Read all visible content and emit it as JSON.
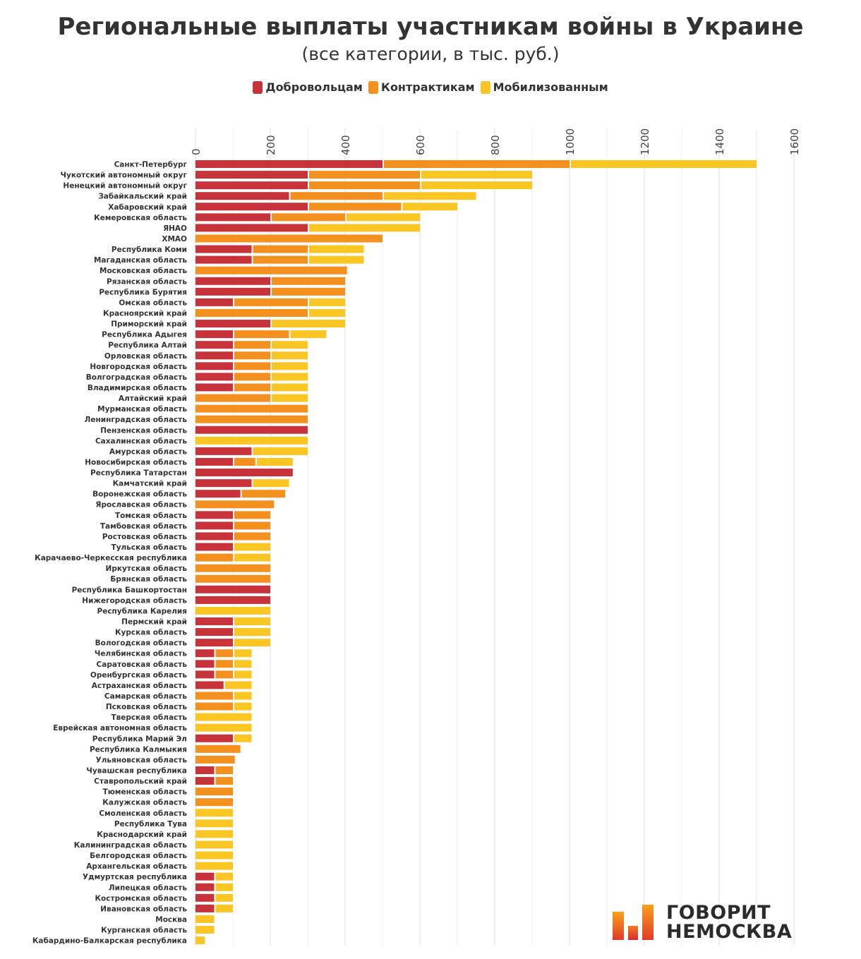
{
  "chart_data": {
    "type": "bar",
    "orientation": "horizontal",
    "stacked": true,
    "title": "Региональные выплаты участникам войны в Украине",
    "subtitle": "(все категории, в тыс. руб.)",
    "xlim": [
      0,
      1600
    ],
    "xticks": [
      "0",
      "200",
      "400",
      "600",
      "800",
      "1000",
      "1200",
      "1400",
      "1600"
    ],
    "grid": true,
    "legend_position": "top-center",
    "series": [
      {
        "name": "Добровольцам",
        "color": "#c8323a"
      },
      {
        "name": "Контрактикам",
        "color": "#f4901e"
      },
      {
        "name": "Мобилизованным",
        "color": "#f9c623"
      }
    ],
    "rows": [
      {
        "label": "Санкт-Петербург",
        "values": [
          500,
          500,
          500
        ]
      },
      {
        "label": "Чукотский автономный округ",
        "values": [
          300,
          300,
          300
        ]
      },
      {
        "label": "Ненецкий автономный округ",
        "values": [
          300,
          300,
          300
        ]
      },
      {
        "label": "Забайкальский край",
        "values": [
          250,
          250,
          250
        ]
      },
      {
        "label": "Хабаровский край",
        "values": [
          300,
          250,
          150
        ]
      },
      {
        "label": "Кемеровская область",
        "values": [
          200,
          200,
          200
        ]
      },
      {
        "label": "ЯНАО",
        "values": [
          300,
          0,
          300
        ]
      },
      {
        "label": "ХМАО",
        "values": [
          0,
          500,
          0
        ]
      },
      {
        "label": "Республика Коми",
        "values": [
          150,
          150,
          150
        ]
      },
      {
        "label": "Магаданская область",
        "values": [
          150,
          150,
          150
        ]
      },
      {
        "label": "Московская область",
        "values": [
          0,
          405,
          0
        ]
      },
      {
        "label": "Рязанская область",
        "values": [
          200,
          200,
          0
        ]
      },
      {
        "label": "Республика Бурятия",
        "values": [
          200,
          200,
          0
        ]
      },
      {
        "label": "Омская область",
        "values": [
          100,
          200,
          100
        ]
      },
      {
        "label": "Красноярский край",
        "values": [
          0,
          300,
          100
        ]
      },
      {
        "label": "Приморский край",
        "values": [
          200,
          0,
          200
        ]
      },
      {
        "label": "Республика Адыгея",
        "values": [
          100,
          150,
          100
        ]
      },
      {
        "label": "Республика Алтай",
        "values": [
          100,
          100,
          100
        ]
      },
      {
        "label": "Орловская область",
        "values": [
          100,
          100,
          100
        ]
      },
      {
        "label": "Новгородская область",
        "values": [
          100,
          100,
          100
        ]
      },
      {
        "label": "Волгоградская область",
        "values": [
          100,
          100,
          100
        ]
      },
      {
        "label": "Владимирская область",
        "values": [
          100,
          100,
          100
        ]
      },
      {
        "label": "Алтайский край",
        "values": [
          0,
          200,
          100
        ]
      },
      {
        "label": "Мурманская область",
        "values": [
          0,
          300,
          0
        ]
      },
      {
        "label": "Ленинградская область",
        "values": [
          0,
          300,
          0
        ]
      },
      {
        "label": "Пензенская область",
        "values": [
          300,
          0,
          0
        ]
      },
      {
        "label": "Сахалинская область",
        "values": [
          0,
          0,
          300
        ]
      },
      {
        "label": "Амурская область",
        "values": [
          150,
          0,
          150
        ]
      },
      {
        "label": "Новосибирская область",
        "values": [
          100,
          60,
          100
        ]
      },
      {
        "label": "Республика Татарстан",
        "values": [
          260,
          0,
          0
        ]
      },
      {
        "label": "Камчатский край",
        "values": [
          150,
          0,
          100
        ]
      },
      {
        "label": "Воронежская область",
        "values": [
          120,
          120,
          0
        ]
      },
      {
        "label": "Ярославская область",
        "values": [
          0,
          210,
          0
        ]
      },
      {
        "label": "Томская область",
        "values": [
          100,
          100,
          0
        ]
      },
      {
        "label": "Тамбовская область",
        "values": [
          100,
          100,
          0
        ]
      },
      {
        "label": "Ростовская область",
        "values": [
          100,
          100,
          0
        ]
      },
      {
        "label": "Тульская область",
        "values": [
          100,
          0,
          100
        ]
      },
      {
        "label": "Карачаево-Черкесская республика",
        "values": [
          0,
          100,
          100
        ]
      },
      {
        "label": "Иркутская область",
        "values": [
          0,
          200,
          0
        ]
      },
      {
        "label": "Брянская область",
        "values": [
          0,
          200,
          0
        ]
      },
      {
        "label": "Республика Башкортостан",
        "values": [
          200,
          0,
          0
        ]
      },
      {
        "label": "Нижегородская область",
        "values": [
          200,
          0,
          0
        ]
      },
      {
        "label": "Республика Карелия",
        "values": [
          0,
          0,
          200
        ]
      },
      {
        "label": "Пермский край",
        "values": [
          100,
          0,
          100
        ]
      },
      {
        "label": "Курская область",
        "values": [
          100,
          0,
          100
        ]
      },
      {
        "label": "Вологодская область",
        "values": [
          100,
          0,
          100
        ]
      },
      {
        "label": "Челябинская область",
        "values": [
          50,
          50,
          50
        ]
      },
      {
        "label": "Саратовская область",
        "values": [
          50,
          50,
          50
        ]
      },
      {
        "label": "Оренбургская область",
        "values": [
          50,
          50,
          50
        ]
      },
      {
        "label": "Астраханская область",
        "values": [
          75,
          0,
          75
        ]
      },
      {
        "label": "Самарская область",
        "values": [
          0,
          100,
          50
        ]
      },
      {
        "label": "Псковская область",
        "values": [
          0,
          100,
          50
        ]
      },
      {
        "label": "Тверская область",
        "values": [
          0,
          0,
          150
        ]
      },
      {
        "label": "Еврейская автономная область",
        "values": [
          0,
          0,
          150
        ]
      },
      {
        "label": "Республика Марий Эл",
        "values": [
          100,
          0,
          50
        ]
      },
      {
        "label": "Республика Калмыкия",
        "values": [
          0,
          120,
          0
        ]
      },
      {
        "label": "Ульяновская область",
        "values": [
          0,
          105,
          0
        ]
      },
      {
        "label": "Чувашская республика",
        "values": [
          50,
          50,
          0
        ]
      },
      {
        "label": "Ставропольский край",
        "values": [
          50,
          50,
          0
        ]
      },
      {
        "label": "Тюменская область",
        "values": [
          0,
          100,
          0
        ]
      },
      {
        "label": "Калужская область",
        "values": [
          0,
          100,
          0
        ]
      },
      {
        "label": "Смоленская область",
        "values": [
          0,
          0,
          100
        ]
      },
      {
        "label": "Республика Тува",
        "values": [
          0,
          0,
          100
        ]
      },
      {
        "label": "Краснодарский край",
        "values": [
          0,
          0,
          100
        ]
      },
      {
        "label": "Калининградская область",
        "values": [
          0,
          0,
          100
        ]
      },
      {
        "label": "Белгородская область",
        "values": [
          0,
          0,
          100
        ]
      },
      {
        "label": "Архангельская область",
        "values": [
          0,
          0,
          100
        ]
      },
      {
        "label": "Удмуртская республика",
        "values": [
          50,
          0,
          50
        ]
      },
      {
        "label": "Липецкая область",
        "values": [
          50,
          0,
          50
        ]
      },
      {
        "label": "Костромская область",
        "values": [
          50,
          0,
          50
        ]
      },
      {
        "label": "Ивановская область",
        "values": [
          50,
          0,
          50
        ]
      },
      {
        "label": "Москва",
        "values": [
          0,
          0,
          50
        ]
      },
      {
        "label": "Курганская область",
        "values": [
          0,
          0,
          50
        ]
      },
      {
        "label": "Кабардино-Балкарская республика",
        "values": [
          0,
          0,
          25
        ]
      }
    ]
  },
  "logo": {
    "line1": "ГОВОРИТ",
    "line2": "НЕМОСКВА"
  }
}
